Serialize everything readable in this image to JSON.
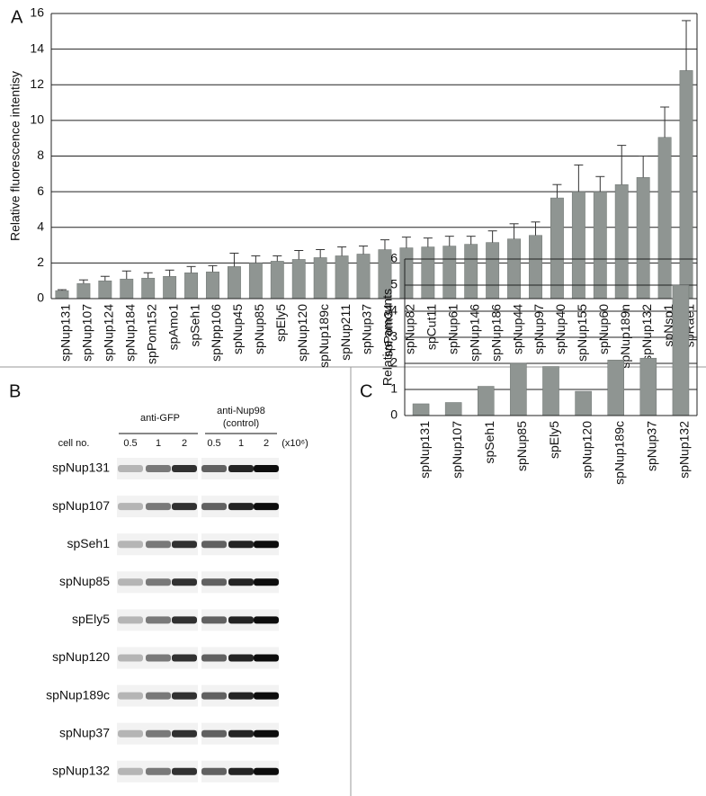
{
  "chart_data": [
    {
      "type": "bar",
      "panel_label": "A",
      "ylabel": "Relative fluorescence intentisy",
      "categories": [
        "spNup131",
        "spNup107",
        "spNup124",
        "spNup184",
        "spPom152",
        "spAmo1",
        "spSeh1",
        "spNpp106",
        "spNup45",
        "spNup85",
        "spEly5",
        "spNup120",
        "spNup189c",
        "spNup211",
        "spNup37",
        "spPom34",
        "spNup82",
        "spCut11",
        "spNup61",
        "spNup146",
        "spNup186",
        "spNup44",
        "spNup97",
        "spNup40",
        "spNup155",
        "spNup60",
        "spNup189n",
        "spNup132",
        "spNsp1",
        "spRae1"
      ],
      "values": [
        0.45,
        0.85,
        1.0,
        1.1,
        1.15,
        1.25,
        1.45,
        1.5,
        1.8,
        2.0,
        2.1,
        2.2,
        2.3,
        2.4,
        2.5,
        2.75,
        2.85,
        2.9,
        2.95,
        3.05,
        3.15,
        3.35,
        3.55,
        5.65,
        6.0,
        6.0,
        6.4,
        6.8,
        9.05,
        12.8
      ],
      "errors": [
        0.05,
        0.2,
        0.25,
        0.45,
        0.3,
        0.35,
        0.35,
        0.35,
        0.75,
        0.4,
        0.3,
        0.5,
        0.45,
        0.5,
        0.45,
        0.55,
        0.6,
        0.5,
        0.55,
        0.45,
        0.65,
        0.85,
        0.75,
        0.75,
        1.5,
        0.85,
        2.2,
        1.2,
        1.7,
        2.8
      ],
      "color": "#8f9592",
      "category_label_colors": [
        "#d94fd0",
        "#d94fd0",
        "#111",
        "#111",
        "#111",
        "#111",
        "#d94fd0",
        "#111",
        "#111",
        "#d94fd0",
        "#d94fd0",
        "#d94fd0",
        "#d94fd0",
        "#111",
        "#d94fd0",
        "#111",
        "#111",
        "#111",
        "#111",
        "#111",
        "#111",
        "#111",
        "#111",
        "#111",
        "#111",
        "#111",
        "#111",
        "#d94fd0",
        "#111",
        "#111"
      ],
      "ylim": [
        0,
        16
      ],
      "yticks": [
        0,
        2,
        4,
        6,
        8,
        10,
        12,
        14,
        16
      ],
      "grid": true
    },
    {
      "type": "bar",
      "panel_label": "C",
      "ylabel": "Relative amounts",
      "categories": [
        "spNup131",
        "spNup107",
        "spSeh1",
        "spNup85",
        "spEly5",
        "spNup120",
        "spNup189c",
        "spNup37",
        "spNup132"
      ],
      "values": [
        0.45,
        0.5,
        1.12,
        2.0,
        1.88,
        0.93,
        2.13,
        2.2,
        5.0
      ],
      "color": "#8f9592",
      "ylim": [
        0,
        6
      ],
      "yticks": [
        0,
        1,
        2,
        3,
        4,
        5,
        6
      ],
      "grid": true
    }
  ],
  "blot": {
    "panel_label": "B",
    "antibodies": [
      "anti-GFP",
      "anti-Nup98",
      "(control)"
    ],
    "cell_no_label": "cell no.",
    "lanes": [
      "0.5",
      "1",
      "2"
    ],
    "unit": "(x10⁶)",
    "rows": [
      "spNup131",
      "spNup107",
      "spSeh1",
      "spNup85",
      "spEly5",
      "spNup120",
      "spNup189c",
      "spNup37",
      "spNup132"
    ]
  }
}
